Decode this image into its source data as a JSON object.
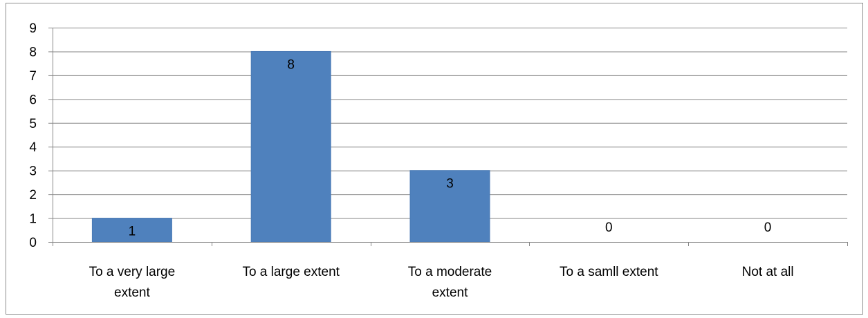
{
  "chart_data": {
    "type": "bar",
    "categories": [
      "To a very large extent",
      "To a large extent",
      "To a moderate extent",
      "To a samll extent",
      "Not at all"
    ],
    "category_label_lines": [
      [
        "To a very large",
        "extent"
      ],
      [
        "To a large extent"
      ],
      [
        "To a moderate",
        "extent"
      ],
      [
        "To a samll extent"
      ],
      [
        "Not at all"
      ]
    ],
    "values": [
      1,
      8,
      3,
      0,
      0
    ],
    "data_labels": [
      "1",
      "8",
      "3",
      "0",
      "0"
    ],
    "yticks": [
      "0",
      "1",
      "2",
      "3",
      "4",
      "5",
      "6",
      "7",
      "8",
      "9"
    ],
    "title": "",
    "xlabel": "",
    "ylabel": "",
    "ylim": [
      0,
      9
    ],
    "grid": true,
    "legend": "none",
    "colors": {
      "bar": "#4f81bd",
      "bar_stroke": "#4a7ab5",
      "grid": "#868686",
      "axis": "#868686",
      "frame": "#8c8c8c"
    }
  }
}
